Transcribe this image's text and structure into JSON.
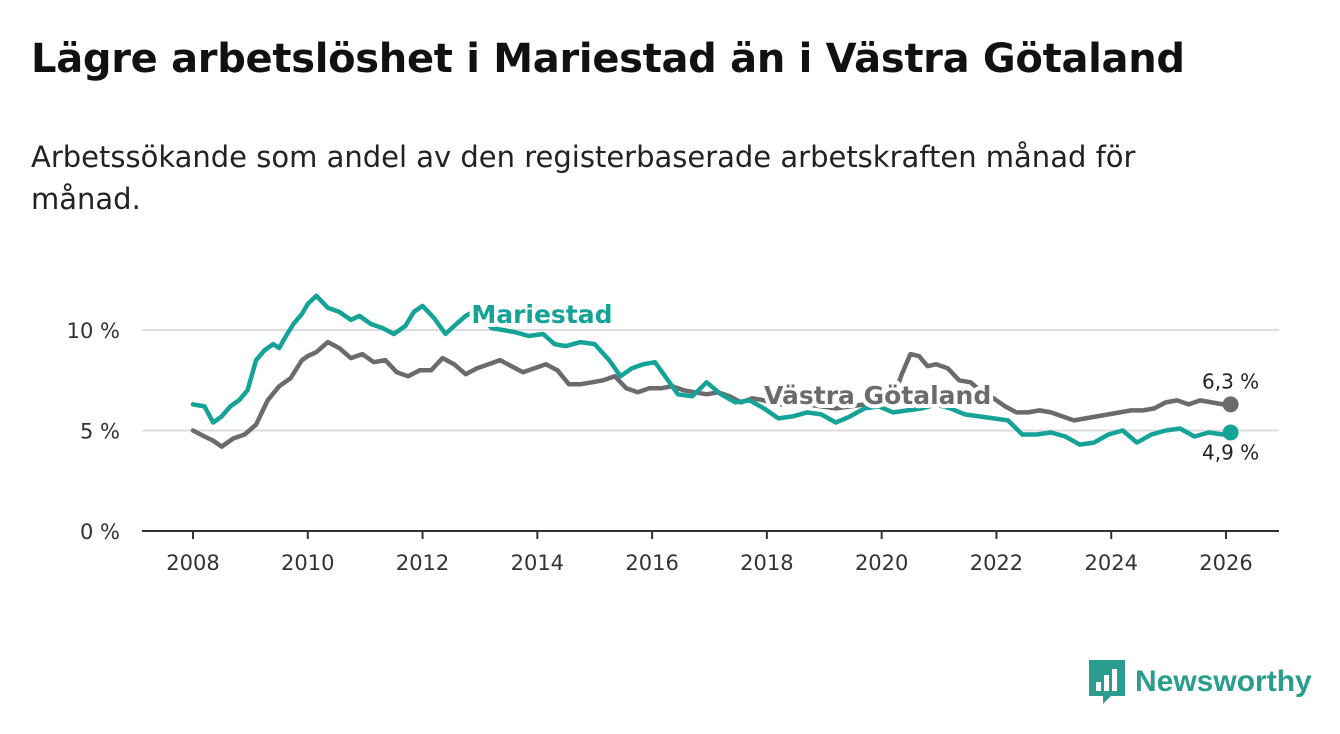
{
  "title": "Lägre arbetslöshet i Mariestad än i Västra Götaland",
  "subtitle": "Arbetssökande som andel av den registerbaserade arbetskraften månad för månad.",
  "brand": {
    "name": "Newsworthy"
  },
  "colors": {
    "mariestad": "#16a397",
    "vastra": "#6b6b6e",
    "grid": "#dddddd",
    "axis": "#333333"
  },
  "chart_data": {
    "type": "line",
    "title": "Lägre arbetslöshet i Mariestad än i Västra Götaland",
    "xlabel": "",
    "ylabel": "",
    "xlim": [
      2008,
      2026.1
    ],
    "ylim": [
      0,
      10
    ],
    "x_ticks": [
      2008,
      2010,
      2012,
      2014,
      2016,
      2018,
      2020,
      2022,
      2024,
      2026
    ],
    "x_tick_labels": [
      "2008",
      "2010",
      "2012",
      "2014",
      "2016",
      "2018",
      "2020",
      "2022",
      "2024",
      "2026"
    ],
    "y_ticks": [
      0,
      5,
      10
    ],
    "y_tick_labels": [
      "0 %",
      "5 %",
      "10 %"
    ],
    "grid": true,
    "series": [
      {
        "name": "Mariestad",
        "label": "Mariestad",
        "end_label": "4,9 %",
        "x": [
          2008,
          2008.2,
          2008.35,
          2008.5,
          2008.65,
          2008.8,
          2008.95,
          2009.1,
          2009.25,
          2009.4,
          2009.5,
          2009.6,
          2009.75,
          2009.9,
          2010.0,
          2010.15,
          2010.35,
          2010.55,
          2010.75,
          2010.9,
          2011.1,
          2011.3,
          2011.5,
          2011.7,
          2011.85,
          2012.0,
          2012.2,
          2012.4,
          2012.55,
          2012.75,
          2012.95,
          2013.2,
          2013.4,
          2013.6,
          2013.85,
          2014.1,
          2014.3,
          2014.5,
          2014.75,
          2015.0,
          2015.25,
          2015.45,
          2015.65,
          2015.85,
          2016.05,
          2016.25,
          2016.45,
          2016.7,
          2016.95,
          2017.2,
          2017.45,
          2017.7,
          2017.95,
          2018.2,
          2018.45,
          2018.7,
          2018.95,
          2019.2,
          2019.45,
          2019.7,
          2019.95,
          2020.2,
          2020.45,
          2020.7,
          2020.95,
          2021.2,
          2021.45,
          2021.7,
          2021.95,
          2022.2,
          2022.45,
          2022.7,
          2022.95,
          2023.2,
          2023.45,
          2023.7,
          2023.95,
          2024.2,
          2024.45,
          2024.7,
          2024.95,
          2025.2,
          2025.45,
          2025.7,
          2025.95,
          2026.08
        ],
        "values": [
          6.3,
          6.2,
          5.4,
          5.7,
          6.2,
          6.5,
          7.0,
          8.5,
          9.0,
          9.3,
          9.1,
          9.6,
          10.3,
          10.8,
          11.3,
          11.7,
          11.1,
          10.9,
          10.5,
          10.7,
          10.3,
          10.1,
          9.8,
          10.2,
          10.9,
          11.2,
          10.6,
          9.8,
          10.2,
          10.7,
          11.0,
          10.1,
          10.0,
          9.9,
          9.7,
          9.8,
          9.3,
          9.2,
          9.4,
          9.3,
          8.5,
          7.7,
          8.1,
          8.3,
          8.4,
          7.6,
          6.8,
          6.7,
          7.4,
          6.8,
          6.4,
          6.5,
          6.1,
          5.6,
          5.7,
          5.9,
          5.8,
          5.4,
          5.7,
          6.1,
          6.2,
          5.9,
          6.0,
          6.1,
          6.3,
          6.1,
          5.8,
          5.7,
          5.6,
          5.5,
          4.8,
          4.8,
          4.9,
          4.7,
          4.3,
          4.4,
          4.8,
          5.0,
          4.4,
          4.8,
          5.0,
          5.1,
          4.7,
          4.9,
          4.8,
          4.9
        ]
      },
      {
        "name": "Västra Götaland",
        "label": "Västra Götaland",
        "end_label": "6,3 %",
        "x": [
          2008,
          2008.2,
          2008.35,
          2008.5,
          2008.7,
          2008.9,
          2009.1,
          2009.3,
          2009.5,
          2009.7,
          2009.9,
          2010.0,
          2010.15,
          2010.35,
          2010.55,
          2010.75,
          2010.95,
          2011.15,
          2011.35,
          2011.55,
          2011.75,
          2011.95,
          2012.15,
          2012.35,
          2012.55,
          2012.75,
          2012.95,
          2013.15,
          2013.35,
          2013.55,
          2013.75,
          2013.95,
          2014.15,
          2014.35,
          2014.55,
          2014.75,
          2014.95,
          2015.15,
          2015.35,
          2015.55,
          2015.75,
          2015.95,
          2016.15,
          2016.35,
          2016.55,
          2016.75,
          2016.95,
          2017.15,
          2017.35,
          2017.55,
          2017.75,
          2017.95,
          2018.2,
          2018.45,
          2018.7,
          2018.95,
          2019.2,
          2019.45,
          2019.7,
          2019.95,
          2020.2,
          2020.35,
          2020.5,
          2020.65,
          2020.8,
          2020.95,
          2021.15,
          2021.35,
          2021.55,
          2021.75,
          2021.95,
          2022.15,
          2022.35,
          2022.55,
          2022.75,
          2022.95,
          2023.15,
          2023.35,
          2023.55,
          2023.75,
          2023.95,
          2024.15,
          2024.35,
          2024.55,
          2024.75,
          2024.95,
          2025.15,
          2025.35,
          2025.55,
          2025.75,
          2025.95,
          2026.08
        ],
        "values": [
          5.0,
          4.7,
          4.5,
          4.2,
          4.6,
          4.8,
          5.3,
          6.5,
          7.2,
          7.6,
          8.5,
          8.7,
          8.9,
          9.4,
          9.1,
          8.6,
          8.8,
          8.4,
          8.5,
          7.9,
          7.7,
          8.0,
          8.0,
          8.6,
          8.3,
          7.8,
          8.1,
          8.3,
          8.5,
          8.2,
          7.9,
          8.1,
          8.3,
          8.0,
          7.3,
          7.3,
          7.4,
          7.5,
          7.7,
          7.1,
          6.9,
          7.1,
          7.1,
          7.2,
          7.0,
          6.9,
          6.8,
          6.9,
          6.7,
          6.4,
          6.6,
          6.5,
          6.3,
          6.3,
          6.3,
          6.2,
          6.1,
          6.2,
          6.3,
          6.4,
          6.6,
          7.8,
          8.8,
          8.7,
          8.2,
          8.3,
          8.1,
          7.5,
          7.4,
          6.9,
          6.6,
          6.2,
          5.9,
          5.9,
          6.0,
          5.9,
          5.7,
          5.5,
          5.6,
          5.7,
          5.8,
          5.9,
          6.0,
          6.0,
          6.1,
          6.4,
          6.5,
          6.3,
          6.5,
          6.4,
          6.3,
          6.3
        ]
      }
    ]
  }
}
